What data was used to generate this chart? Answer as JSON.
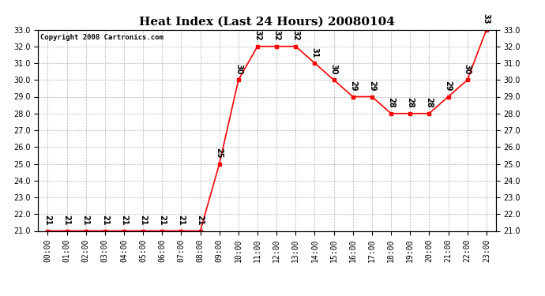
{
  "title": "Heat Index (Last 24 Hours) 20080104",
  "copyright": "Copyright 2008 Cartronics.com",
  "hours": [
    "00:00",
    "01:00",
    "02:00",
    "03:00",
    "04:00",
    "05:00",
    "06:00",
    "07:00",
    "08:00",
    "09:00",
    "10:00",
    "11:00",
    "12:00",
    "13:00",
    "14:00",
    "15:00",
    "16:00",
    "17:00",
    "18:00",
    "19:00",
    "20:00",
    "21:00",
    "22:00",
    "23:00"
  ],
  "values": [
    21,
    21,
    21,
    21,
    21,
    21,
    21,
    21,
    21,
    25,
    30,
    32,
    32,
    32,
    31,
    30,
    29,
    29,
    28,
    28,
    28,
    29,
    30,
    33
  ],
  "ylim": [
    21.0,
    33.0
  ],
  "yticks": [
    21.0,
    22.0,
    23.0,
    24.0,
    25.0,
    26.0,
    27.0,
    28.0,
    29.0,
    30.0,
    31.0,
    32.0,
    33.0
  ],
  "line_color": "red",
  "marker": "s",
  "marker_size": 3,
  "bg_color": "white",
  "grid_color": "#aaaaaa",
  "title_fontsize": 11,
  "label_fontsize": 7,
  "copyright_fontsize": 6.5,
  "annotation_fontsize": 7
}
